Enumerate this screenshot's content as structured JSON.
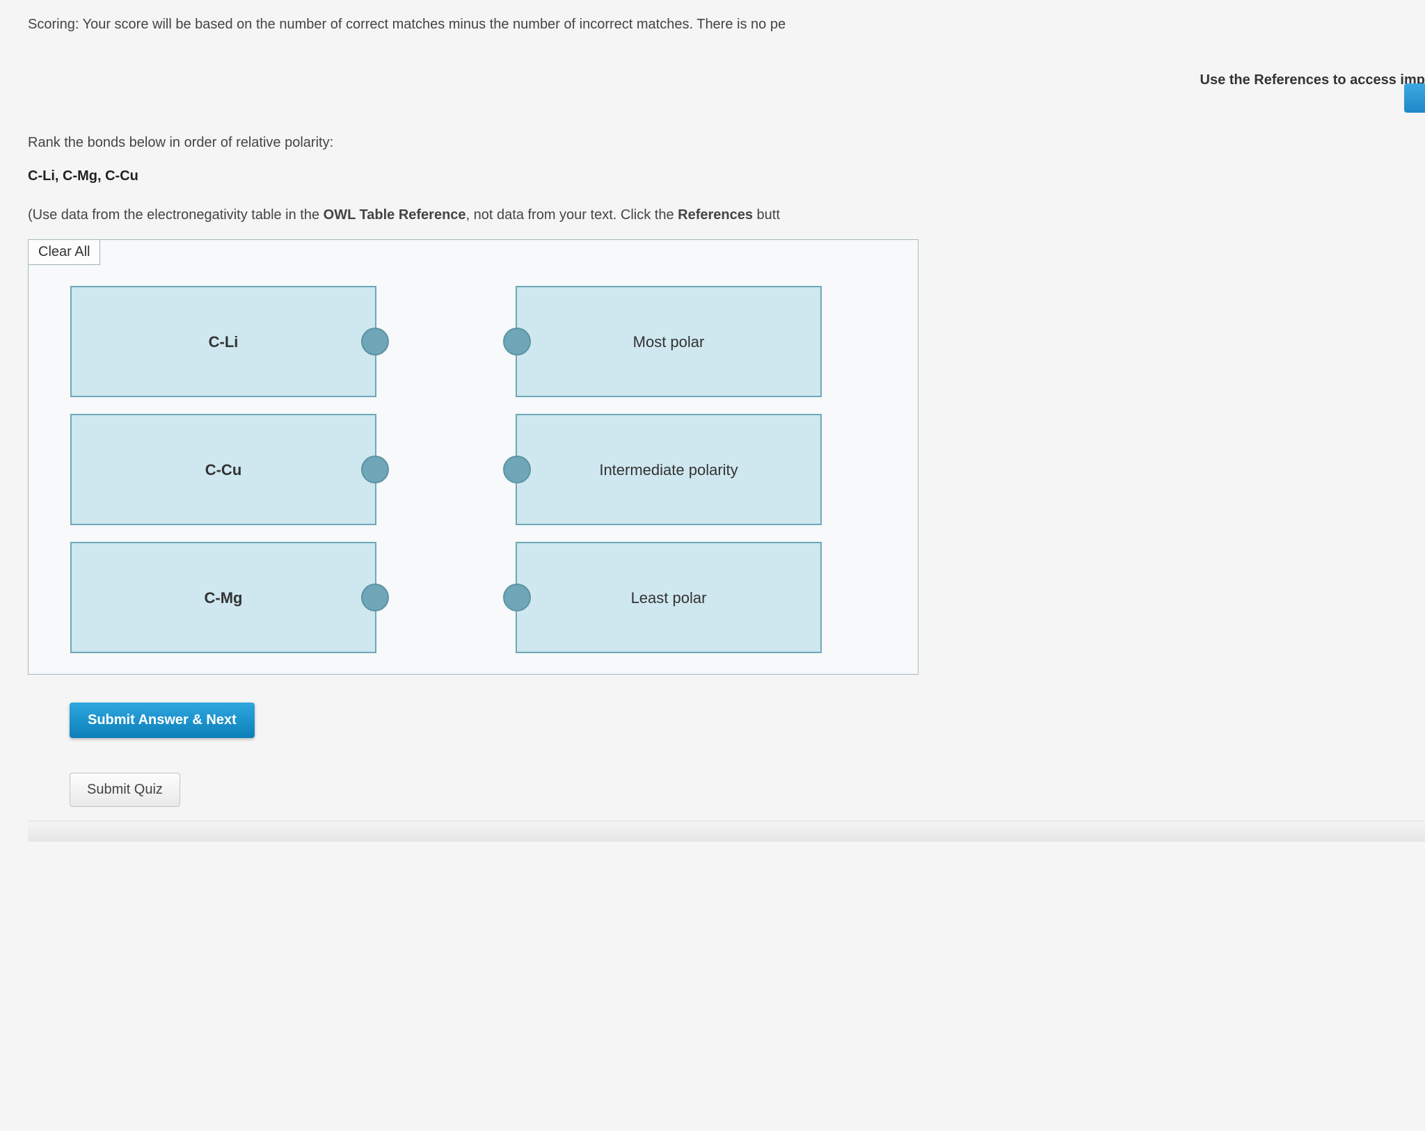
{
  "scoring_text": "Scoring: Your score will be based on the number of correct matches minus the number of incorrect matches. There is no pe",
  "references_hint": "Use the References to access imp",
  "question": {
    "prompt": "Rank the bonds below in order of relative polarity:",
    "bonds": "C-Li, C-Mg, C-Cu",
    "note_before": "(Use data from the electronegativity table in the ",
    "note_bold": "OWL Table Reference",
    "note_mid": ", not data from your text. Click the ",
    "note_bold2": "References",
    "note_after": " butt"
  },
  "clear_all_label": "Clear All",
  "left_tiles": [
    {
      "label": "C-Li"
    },
    {
      "label": "C-Cu"
    },
    {
      "label": "C-Mg"
    }
  ],
  "right_tiles": [
    {
      "label": "Most polar"
    },
    {
      "label": "Intermediate polarity"
    },
    {
      "label": "Least polar"
    }
  ],
  "submit_next_label": "Submit Answer & Next",
  "submit_quiz_label": "Submit Quiz",
  "colors": {
    "tile_bg": "#cfe7ef",
    "tile_border": "#6fa7b8",
    "nub": "#6fa7b8",
    "primary_btn_top": "#2fa7df",
    "primary_btn_bottom": "#0b7fb8",
    "page_bg": "#f5f5f5"
  }
}
